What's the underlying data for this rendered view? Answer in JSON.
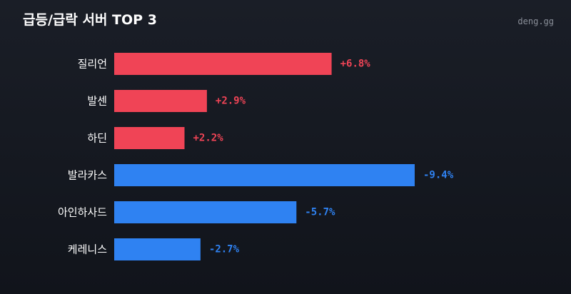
{
  "header": {
    "title": "급등/급락 서버 TOP 3",
    "brand": "deng.gg"
  },
  "colors": {
    "positive": "#f04456",
    "negative": "#2f82f2",
    "background": "#161a22",
    "text": "#ffffff",
    "muted": "#8a8f99"
  },
  "chart_data": {
    "type": "bar",
    "orientation": "horizontal",
    "title": "급등/급락 서버 TOP 3",
    "categories": [
      "질리언",
      "발센",
      "하딘",
      "발라카스",
      "아인하사드",
      "케레니스"
    ],
    "values": [
      6.8,
      2.9,
      2.2,
      -9.4,
      -5.7,
      -2.7
    ],
    "value_labels": [
      "+6.8%",
      "+2.9%",
      "+2.2%",
      "-9.4%",
      "-5.7%",
      "-2.7%"
    ],
    "bar_length_basis": "absolute value",
    "xlim": [
      0,
      9.4
    ],
    "grid": false,
    "legend": "none"
  }
}
